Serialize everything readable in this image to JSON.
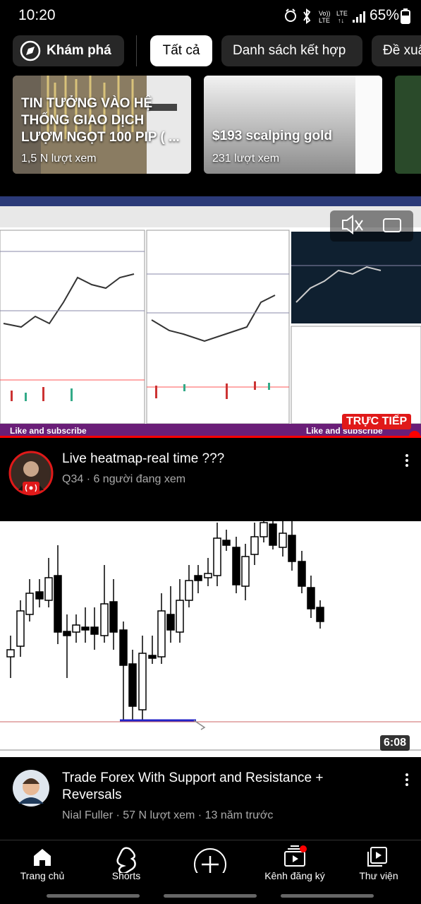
{
  "status_bar": {
    "time": "10:20",
    "battery": "65%"
  },
  "chips": {
    "explore": "Khám phá",
    "items": [
      "Tất cả",
      "Danh sách kết hợp",
      "Đề xuất"
    ]
  },
  "shorts": [
    {
      "title": "TIN TƯỞNG VÀO HỆ THỐNG GIAO DỊCH LƯỢM NGỌT 100 PIP ( ...",
      "views": "1,5 N lượt xem"
    },
    {
      "title": "$193 scalping gold",
      "views": "231 lượt xem"
    }
  ],
  "videos": [
    {
      "title": "Live heatmap-real time ???",
      "meta": "Q34 · 6 người đang xem",
      "badge": "TRỰC TIẾP",
      "overlay": "Like and subscribe"
    },
    {
      "title": "Trade Forex With Support and Resistance + Reversals",
      "meta": "Nial Fuller · 57 N lượt xem · 13 năm trước",
      "duration": "6:08"
    }
  ],
  "nav": [
    "Trang chủ",
    "Shorts",
    "Kênh đăng ký",
    "Thư viện"
  ]
}
